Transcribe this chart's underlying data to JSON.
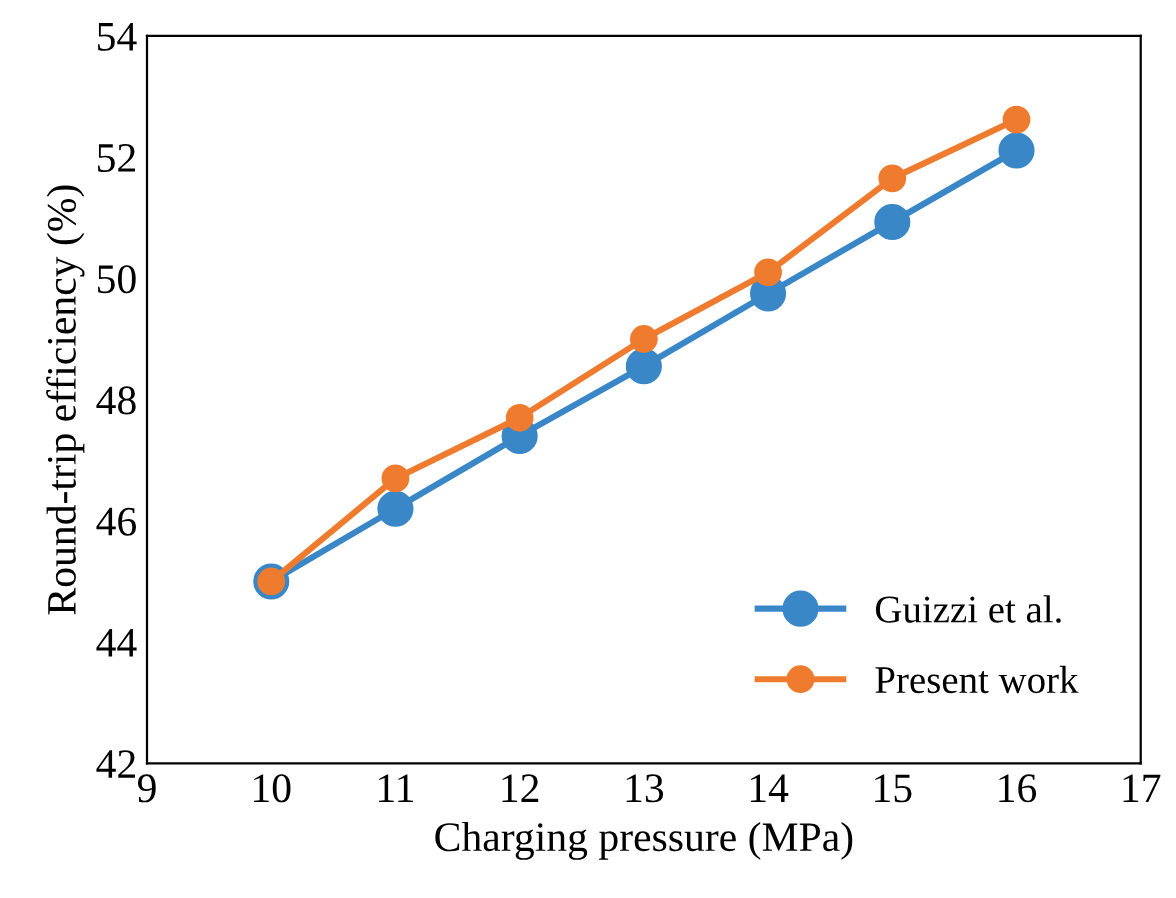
{
  "chart_data": {
    "type": "line",
    "xlabel": "Charging pressure (MPa)",
    "ylabel": "Round-trip efficiency (%)",
    "x": [
      10,
      11,
      12,
      13,
      14,
      15,
      16
    ],
    "series": [
      {
        "name": "Guizzi et al.",
        "color": "#3a87c8",
        "values": [
          45.0,
          46.2,
          47.4,
          48.55,
          49.75,
          50.93,
          52.11
        ]
      },
      {
        "name": "Present work",
        "color": "#ef7b2f",
        "values": [
          45.0,
          46.7,
          47.7,
          49.0,
          50.1,
          51.65,
          52.62
        ]
      }
    ],
    "xlim": [
      9,
      17
    ],
    "xticks": [
      9,
      10,
      11,
      12,
      13,
      14,
      15,
      16,
      17
    ],
    "ylim": [
      42,
      54
    ],
    "yticks": [
      42,
      44,
      46,
      48,
      50,
      52,
      54
    ],
    "grid": false,
    "legend": "bottom right",
    "marker": "circle",
    "line_style": "solid"
  }
}
